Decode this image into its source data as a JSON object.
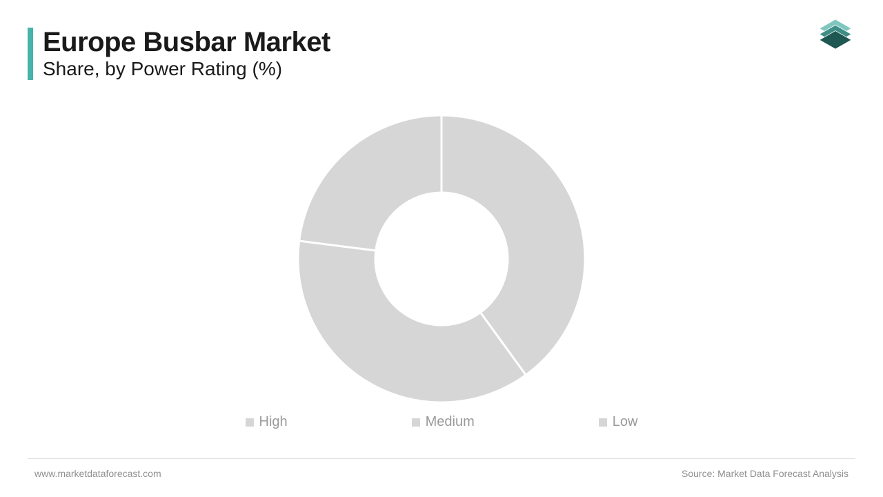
{
  "header": {
    "title": "Europe Busbar Market",
    "subtitle": "Share, by Power Rating (%)",
    "accent_color": "#47b3a9",
    "title_color": "#1a1a1a",
    "title_fontsize": 40,
    "subtitle_fontsize": 28
  },
  "logo": {
    "layers": [
      {
        "fill": "#1f5752",
        "y_offset": 0
      },
      {
        "fill": "#3e8e86",
        "y_offset": 10
      },
      {
        "fill": "#7fc6bf",
        "y_offset": 20
      }
    ],
    "stroke": "#ffffff"
  },
  "chart": {
    "type": "donut",
    "outer_radius": 208,
    "inner_radius": 96,
    "center_fill": "#ffffff",
    "background_color": "#ffffff",
    "gap_stroke": "#ffffff",
    "gap_width": 3,
    "series": [
      {
        "label": "High",
        "value": 40,
        "color": "#d6d6d6"
      },
      {
        "label": "Medium",
        "value": 37,
        "color": "#d6d6d6"
      },
      {
        "label": "Low",
        "value": 23,
        "color": "#d6d6d6"
      }
    ]
  },
  "legend": {
    "fontsize": 20,
    "text_color": "#9a9a9a",
    "swatch_color": "#d6d6d6",
    "items": [
      "High",
      "Medium",
      "Low"
    ]
  },
  "footer": {
    "left": "www.marketdataforecast.com",
    "right": "Source: Market Data Forecast Analysis",
    "text_color": "#8f8f8f",
    "fontsize": 14,
    "divider_color": "#dcdcdc"
  }
}
